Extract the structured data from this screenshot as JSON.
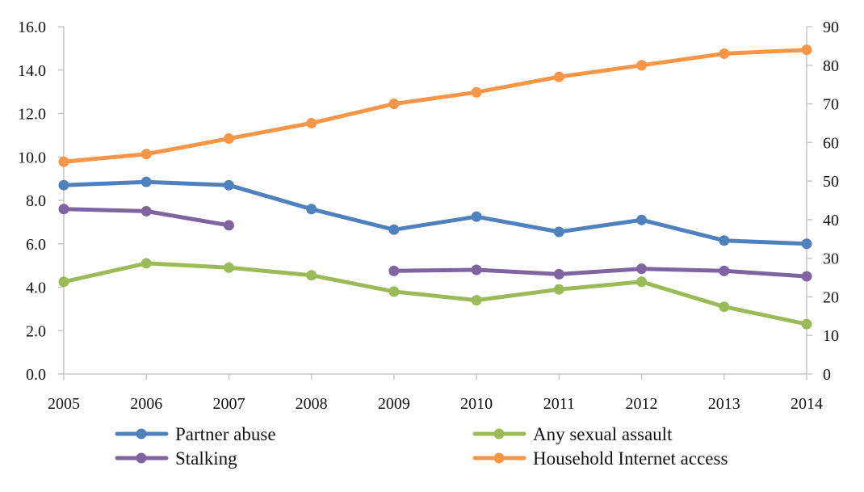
{
  "chart_data": {
    "type": "line",
    "title": "",
    "xlabel": "",
    "ylabel": "",
    "y2label": "",
    "x": [
      "2005",
      "2006",
      "2007",
      "2008",
      "2009",
      "2010",
      "2011",
      "2012",
      "2013",
      "2014"
    ],
    "ylim": [
      0,
      16
    ],
    "y2lim": [
      0,
      90
    ],
    "yticks": [
      "0.0",
      "2.0",
      "4.0",
      "6.0",
      "8.0",
      "10.0",
      "12.0",
      "14.0",
      "16.0"
    ],
    "y2ticks": [
      "0",
      "10",
      "20",
      "30",
      "40",
      "50",
      "60",
      "70",
      "80",
      "90"
    ],
    "grid": false,
    "legend_position": "bottom",
    "series": [
      {
        "name": "Partner abuse",
        "axis": "left",
        "color": "#4F81BD",
        "values": [
          8.7,
          8.85,
          8.7,
          7.6,
          6.65,
          7.25,
          6.55,
          7.1,
          6.15,
          6.0
        ]
      },
      {
        "name": "Any sexual assault",
        "axis": "left",
        "color": "#9BBB59",
        "values": [
          4.25,
          5.1,
          4.9,
          4.55,
          3.8,
          3.4,
          3.9,
          4.25,
          3.1,
          2.3
        ]
      },
      {
        "name": "Stalking",
        "axis": "left",
        "color": "#8064A2",
        "values": [
          7.6,
          7.5,
          6.85,
          null,
          4.75,
          4.8,
          4.6,
          4.85,
          4.75,
          4.5
        ]
      },
      {
        "name": "Household Internet access",
        "axis": "right",
        "color": "#F79646",
        "values": [
          55,
          57,
          61,
          65,
          70,
          73,
          77,
          80,
          83,
          84
        ]
      }
    ]
  }
}
